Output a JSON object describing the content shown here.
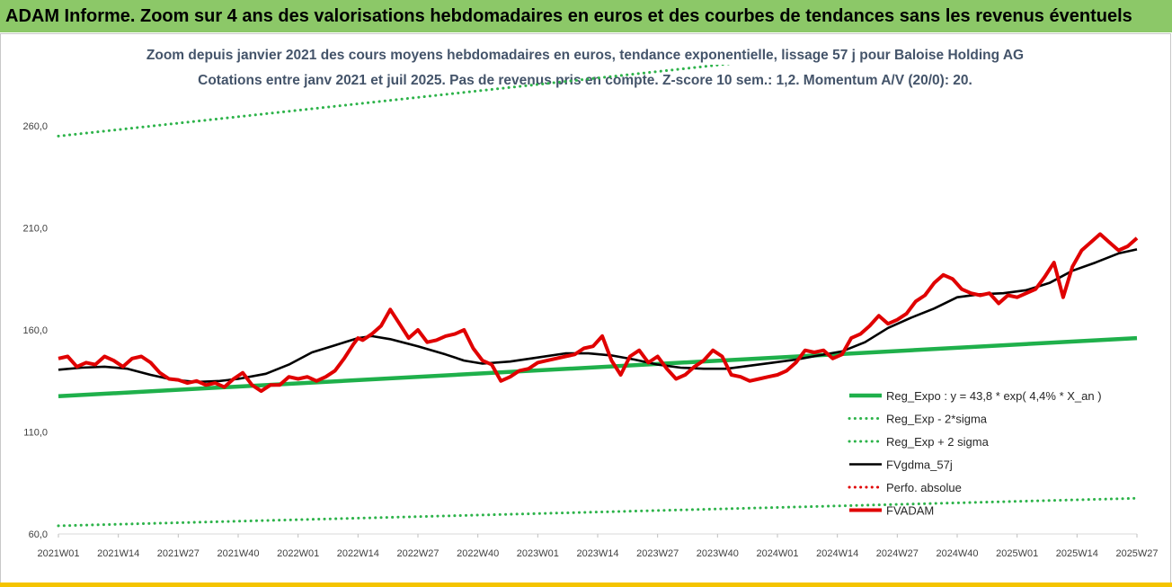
{
  "banner": {
    "title": "ADAM Informe. Zoom sur 4 ans des valorisations hebdomadaires en euros et des courbes de tendances sans les revenus éventuels"
  },
  "colors": {
    "banner_bg": "#8cc868",
    "reg_expo": "#1fb04b",
    "sigma": "#2db34a",
    "fvgdma": "#000000",
    "perfo": "#e00000",
    "fvadam": "#e00000",
    "footer_bar": "#f5c400"
  },
  "chart_data": {
    "type": "line",
    "title": "Zoom depuis janvier 2021 des cours moyens hebdomadaires en euros, tendance exponentielle, lissage 57 j pour Baloise Holding AG",
    "subtitle": "Cotations entre janv 2021 et juil 2025. Pas de revenus pris en compte. Z-score 10 sem.: 1,2. Momentum A/V (20/0): 20.",
    "xlabel": "",
    "ylabel": "",
    "ylim": [
      60,
      290
    ],
    "yticks": [
      "60,0",
      "110,0",
      "160,0",
      "210,0",
      "260,0"
    ],
    "ytick_values": [
      60,
      110,
      160,
      210,
      260
    ],
    "xticks": [
      "2021W01",
      "2021W14",
      "2021W27",
      "2021W40",
      "2022W01",
      "2022W14",
      "2022W27",
      "2022W40",
      "2023W01",
      "2023W14",
      "2023W27",
      "2023W40",
      "2024W01",
      "2024W14",
      "2024W27",
      "2024W40",
      "2025W01",
      "2025W14",
      "2025W27"
    ],
    "x_weeks": [
      0,
      13,
      26,
      39,
      52,
      65,
      78,
      91,
      104,
      117,
      130,
      143,
      156,
      169,
      182,
      195,
      208,
      221,
      234
    ],
    "grid": false,
    "legend_position": "right",
    "series": [
      {
        "name": "Reg_Expo : y = 43,8 * exp( 4,4% *  X_an )",
        "style": "solid-thick",
        "color_key": "reg_expo",
        "x": [
          0,
          234
        ],
        "y": [
          127.5,
          156
        ]
      },
      {
        "name": "Reg_Exp - 2*sigma",
        "style": "dotted",
        "color_key": "sigma",
        "x": [
          0,
          234
        ],
        "y": [
          64,
          77.5
        ]
      },
      {
        "name": "Reg_Exp + 2 sigma",
        "style": "dotted",
        "color_key": "sigma",
        "x": [
          0,
          234
        ],
        "y": [
          255,
          312
        ]
      },
      {
        "name": "FVgdma_57j",
        "style": "solid",
        "color_key": "fvgdma",
        "x": [
          0,
          5,
          10,
          15,
          20,
          25,
          30,
          35,
          39,
          45,
          50,
          55,
          60,
          65,
          68,
          72,
          78,
          84,
          88,
          92,
          98,
          104,
          110,
          115,
          120,
          125,
          130,
          135,
          140,
          145,
          150,
          155,
          160,
          165,
          170,
          175,
          180,
          185,
          190,
          195,
          200,
          205,
          210,
          215,
          220,
          225,
          230,
          234
        ],
        "y": [
          140.5,
          141.5,
          142,
          141,
          138,
          135.5,
          134.5,
          135,
          136,
          138.5,
          143,
          149,
          152.5,
          156,
          157,
          155.5,
          152,
          148,
          145,
          143.5,
          144.5,
          146.5,
          148.5,
          148.5,
          147.5,
          145.5,
          143,
          141.5,
          141,
          141,
          142.5,
          144,
          145.5,
          147.5,
          149.5,
          154,
          161,
          166,
          170.5,
          176,
          177.5,
          178,
          179.5,
          183,
          189,
          193,
          197.5,
          199.5
        ]
      },
      {
        "name": "Perfo. absolue",
        "style": "dotted",
        "color_key": "perfo",
        "x": [],
        "y": []
      },
      {
        "name": "FVADAM",
        "style": "solid-thick",
        "color_key": "fvadam",
        "x": [
          0,
          2,
          4,
          6,
          8,
          10,
          12,
          14,
          16,
          18,
          20,
          22,
          24,
          26,
          28,
          30,
          32,
          34,
          36,
          38,
          40,
          42,
          44,
          46,
          48,
          50,
          52,
          54,
          56,
          58,
          60,
          62,
          64,
          65,
          66,
          68,
          70,
          72,
          74,
          76,
          78,
          80,
          82,
          84,
          86,
          88,
          90,
          92,
          94,
          96,
          98,
          100,
          102,
          104,
          106,
          108,
          110,
          112,
          114,
          116,
          118,
          120,
          122,
          124,
          126,
          128,
          130,
          132,
          134,
          136,
          138,
          140,
          142,
          144,
          146,
          148,
          150,
          152,
          154,
          156,
          158,
          160,
          162,
          164,
          166,
          168,
          170,
          172,
          174,
          176,
          178,
          180,
          182,
          184,
          186,
          188,
          190,
          192,
          194,
          196,
          198,
          200,
          202,
          204,
          206,
          208,
          210,
          212,
          214,
          216,
          218,
          220,
          222,
          224,
          226,
          228,
          230,
          232,
          234
        ],
        "y": [
          146,
          147,
          142,
          144,
          143,
          147,
          145,
          142,
          146,
          147,
          144,
          139,
          136,
          135.5,
          134,
          135,
          133,
          134,
          132,
          136,
          139,
          133,
          130,
          133,
          133,
          137,
          136,
          137,
          135,
          137,
          140,
          146,
          153,
          156,
          155,
          158,
          162,
          170,
          163,
          156,
          160,
          154,
          155,
          157,
          158,
          160,
          151,
          145,
          143,
          135,
          137,
          140,
          141,
          144,
          145,
          146,
          147,
          148,
          151,
          152,
          157,
          145,
          138,
          147,
          150,
          144,
          147,
          141,
          136,
          138,
          142,
          145,
          150,
          147,
          138,
          137,
          135,
          136,
          137,
          138,
          140,
          144,
          150,
          149,
          150,
          146,
          148,
          156,
          158,
          162,
          167,
          163,
          165,
          168,
          174,
          177,
          183,
          187,
          185,
          180,
          178,
          177,
          178,
          173,
          177,
          176,
          178,
          180,
          186,
          193,
          176,
          191,
          199,
          203,
          207,
          203,
          199,
          201,
          205
        ]
      }
    ]
  }
}
